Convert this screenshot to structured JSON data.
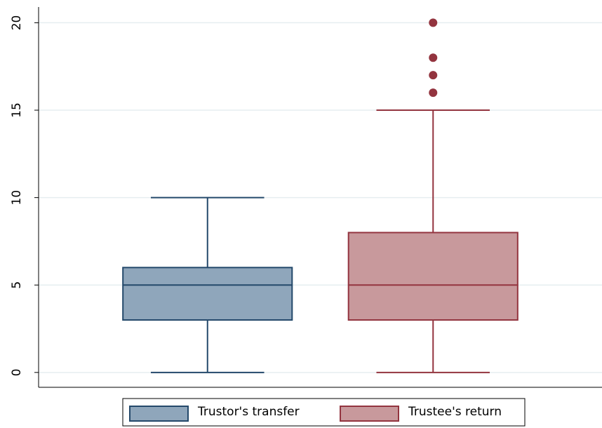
{
  "chart_data": {
    "type": "box",
    "series": [
      {
        "name": "Trustor's transfer",
        "color": "#8fa6bb",
        "line_color": "#24496b",
        "min": 0,
        "q1": 3,
        "median": 5,
        "q3": 6,
        "max": 10,
        "outliers": []
      },
      {
        "name": "Trustee's return",
        "color": "#c8999c",
        "line_color": "#93343f",
        "min": 0,
        "q1": 3,
        "median": 5,
        "q3": 8,
        "max": 15,
        "outliers": [
          16,
          17,
          18,
          20
        ]
      }
    ],
    "ylim": [
      -0.85,
      20.9
    ],
    "yticks": [
      0,
      5,
      10,
      15,
      20
    ],
    "grid": true,
    "legend": "bottom"
  }
}
